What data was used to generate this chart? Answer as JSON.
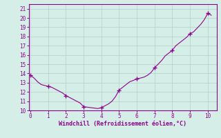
{
  "x_vals": [
    0,
    0.2,
    0.4,
    0.6,
    0.8,
    1.0,
    1.2,
    1.4,
    1.6,
    1.8,
    2.0,
    2.2,
    2.4,
    2.6,
    2.8,
    3.0,
    3.2,
    3.4,
    3.6,
    3.8,
    4.0,
    4.2,
    4.4,
    4.6,
    4.8,
    5.0,
    5.2,
    5.4,
    5.6,
    5.8,
    6.0,
    6.2,
    6.4,
    6.6,
    6.8,
    7.0,
    7.2,
    7.4,
    7.6,
    7.8,
    8.0,
    8.2,
    8.4,
    8.6,
    8.8,
    9.0,
    9.2,
    9.4,
    9.6,
    9.8,
    10.0,
    10.2
  ],
  "y_vals": [
    13.8,
    13.5,
    13.1,
    12.8,
    12.7,
    12.6,
    12.5,
    12.3,
    12.1,
    11.9,
    11.6,
    11.4,
    11.2,
    11.0,
    10.8,
    10.4,
    10.35,
    10.3,
    10.25,
    10.2,
    10.3,
    10.5,
    10.7,
    11.0,
    11.5,
    12.2,
    12.5,
    12.8,
    13.1,
    13.25,
    13.4,
    13.5,
    13.6,
    13.8,
    14.1,
    14.6,
    15.0,
    15.4,
    15.9,
    16.2,
    16.5,
    17.0,
    17.3,
    17.6,
    17.9,
    18.3,
    18.5,
    18.9,
    19.3,
    19.8,
    20.5,
    20.3
  ],
  "marker_x": [
    0,
    1,
    2,
    3,
    4,
    5,
    6,
    7,
    8,
    9,
    10
  ],
  "marker_y": [
    13.8,
    12.6,
    11.6,
    10.4,
    10.3,
    12.2,
    13.4,
    14.6,
    16.5,
    18.3,
    20.5
  ],
  "xlim": [
    -0.1,
    10.5
  ],
  "ylim": [
    10.0,
    21.5
  ],
  "xticks": [
    0,
    1,
    2,
    3,
    4,
    5,
    6,
    7,
    8,
    9,
    10
  ],
  "yticks": [
    10,
    11,
    12,
    13,
    14,
    15,
    16,
    17,
    18,
    19,
    20,
    21
  ],
  "xlabel": "Windchill (Refroidissement éolien,°C)",
  "line_color": "#8B008B",
  "marker_color": "#8B008B",
  "bg_color": "#D6EEE8",
  "grid_color": "#B8D4CC"
}
